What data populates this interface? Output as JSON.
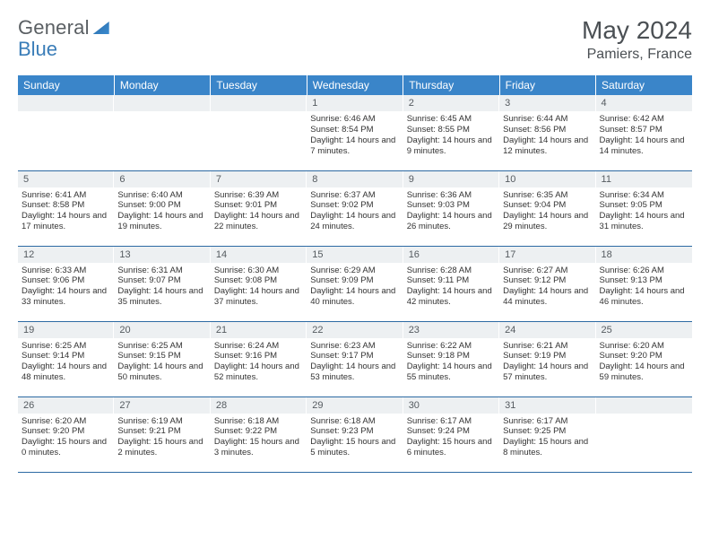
{
  "brand": {
    "general": "General",
    "blue": "Blue"
  },
  "title": "May 2024",
  "location": "Pamiers, France",
  "daynames": [
    "Sunday",
    "Monday",
    "Tuesday",
    "Wednesday",
    "Thursday",
    "Friday",
    "Saturday"
  ],
  "colors": {
    "header_bg": "#3a85c9",
    "header_text": "#ffffff",
    "daynum_bg": "#edf0f2",
    "daynum_text": "#555b60",
    "rule": "#2d6aa3",
    "body_text": "#333333"
  },
  "weeks": [
    [
      {
        "n": "",
        "sr": "",
        "ss": "",
        "dl": ""
      },
      {
        "n": "",
        "sr": "",
        "ss": "",
        "dl": ""
      },
      {
        "n": "",
        "sr": "",
        "ss": "",
        "dl": ""
      },
      {
        "n": "1",
        "sr": "Sunrise: 6:46 AM",
        "ss": "Sunset: 8:54 PM",
        "dl": "Daylight: 14 hours and 7 minutes."
      },
      {
        "n": "2",
        "sr": "Sunrise: 6:45 AM",
        "ss": "Sunset: 8:55 PM",
        "dl": "Daylight: 14 hours and 9 minutes."
      },
      {
        "n": "3",
        "sr": "Sunrise: 6:44 AM",
        "ss": "Sunset: 8:56 PM",
        "dl": "Daylight: 14 hours and 12 minutes."
      },
      {
        "n": "4",
        "sr": "Sunrise: 6:42 AM",
        "ss": "Sunset: 8:57 PM",
        "dl": "Daylight: 14 hours and 14 minutes."
      }
    ],
    [
      {
        "n": "5",
        "sr": "Sunrise: 6:41 AM",
        "ss": "Sunset: 8:58 PM",
        "dl": "Daylight: 14 hours and 17 minutes."
      },
      {
        "n": "6",
        "sr": "Sunrise: 6:40 AM",
        "ss": "Sunset: 9:00 PM",
        "dl": "Daylight: 14 hours and 19 minutes."
      },
      {
        "n": "7",
        "sr": "Sunrise: 6:39 AM",
        "ss": "Sunset: 9:01 PM",
        "dl": "Daylight: 14 hours and 22 minutes."
      },
      {
        "n": "8",
        "sr": "Sunrise: 6:37 AM",
        "ss": "Sunset: 9:02 PM",
        "dl": "Daylight: 14 hours and 24 minutes."
      },
      {
        "n": "9",
        "sr": "Sunrise: 6:36 AM",
        "ss": "Sunset: 9:03 PM",
        "dl": "Daylight: 14 hours and 26 minutes."
      },
      {
        "n": "10",
        "sr": "Sunrise: 6:35 AM",
        "ss": "Sunset: 9:04 PM",
        "dl": "Daylight: 14 hours and 29 minutes."
      },
      {
        "n": "11",
        "sr": "Sunrise: 6:34 AM",
        "ss": "Sunset: 9:05 PM",
        "dl": "Daylight: 14 hours and 31 minutes."
      }
    ],
    [
      {
        "n": "12",
        "sr": "Sunrise: 6:33 AM",
        "ss": "Sunset: 9:06 PM",
        "dl": "Daylight: 14 hours and 33 minutes."
      },
      {
        "n": "13",
        "sr": "Sunrise: 6:31 AM",
        "ss": "Sunset: 9:07 PM",
        "dl": "Daylight: 14 hours and 35 minutes."
      },
      {
        "n": "14",
        "sr": "Sunrise: 6:30 AM",
        "ss": "Sunset: 9:08 PM",
        "dl": "Daylight: 14 hours and 37 minutes."
      },
      {
        "n": "15",
        "sr": "Sunrise: 6:29 AM",
        "ss": "Sunset: 9:09 PM",
        "dl": "Daylight: 14 hours and 40 minutes."
      },
      {
        "n": "16",
        "sr": "Sunrise: 6:28 AM",
        "ss": "Sunset: 9:11 PM",
        "dl": "Daylight: 14 hours and 42 minutes."
      },
      {
        "n": "17",
        "sr": "Sunrise: 6:27 AM",
        "ss": "Sunset: 9:12 PM",
        "dl": "Daylight: 14 hours and 44 minutes."
      },
      {
        "n": "18",
        "sr": "Sunrise: 6:26 AM",
        "ss": "Sunset: 9:13 PM",
        "dl": "Daylight: 14 hours and 46 minutes."
      }
    ],
    [
      {
        "n": "19",
        "sr": "Sunrise: 6:25 AM",
        "ss": "Sunset: 9:14 PM",
        "dl": "Daylight: 14 hours and 48 minutes."
      },
      {
        "n": "20",
        "sr": "Sunrise: 6:25 AM",
        "ss": "Sunset: 9:15 PM",
        "dl": "Daylight: 14 hours and 50 minutes."
      },
      {
        "n": "21",
        "sr": "Sunrise: 6:24 AM",
        "ss": "Sunset: 9:16 PM",
        "dl": "Daylight: 14 hours and 52 minutes."
      },
      {
        "n": "22",
        "sr": "Sunrise: 6:23 AM",
        "ss": "Sunset: 9:17 PM",
        "dl": "Daylight: 14 hours and 53 minutes."
      },
      {
        "n": "23",
        "sr": "Sunrise: 6:22 AM",
        "ss": "Sunset: 9:18 PM",
        "dl": "Daylight: 14 hours and 55 minutes."
      },
      {
        "n": "24",
        "sr": "Sunrise: 6:21 AM",
        "ss": "Sunset: 9:19 PM",
        "dl": "Daylight: 14 hours and 57 minutes."
      },
      {
        "n": "25",
        "sr": "Sunrise: 6:20 AM",
        "ss": "Sunset: 9:20 PM",
        "dl": "Daylight: 14 hours and 59 minutes."
      }
    ],
    [
      {
        "n": "26",
        "sr": "Sunrise: 6:20 AM",
        "ss": "Sunset: 9:20 PM",
        "dl": "Daylight: 15 hours and 0 minutes."
      },
      {
        "n": "27",
        "sr": "Sunrise: 6:19 AM",
        "ss": "Sunset: 9:21 PM",
        "dl": "Daylight: 15 hours and 2 minutes."
      },
      {
        "n": "28",
        "sr": "Sunrise: 6:18 AM",
        "ss": "Sunset: 9:22 PM",
        "dl": "Daylight: 15 hours and 3 minutes."
      },
      {
        "n": "29",
        "sr": "Sunrise: 6:18 AM",
        "ss": "Sunset: 9:23 PM",
        "dl": "Daylight: 15 hours and 5 minutes."
      },
      {
        "n": "30",
        "sr": "Sunrise: 6:17 AM",
        "ss": "Sunset: 9:24 PM",
        "dl": "Daylight: 15 hours and 6 minutes."
      },
      {
        "n": "31",
        "sr": "Sunrise: 6:17 AM",
        "ss": "Sunset: 9:25 PM",
        "dl": "Daylight: 15 hours and 8 minutes."
      },
      {
        "n": "",
        "sr": "",
        "ss": "",
        "dl": ""
      }
    ]
  ]
}
